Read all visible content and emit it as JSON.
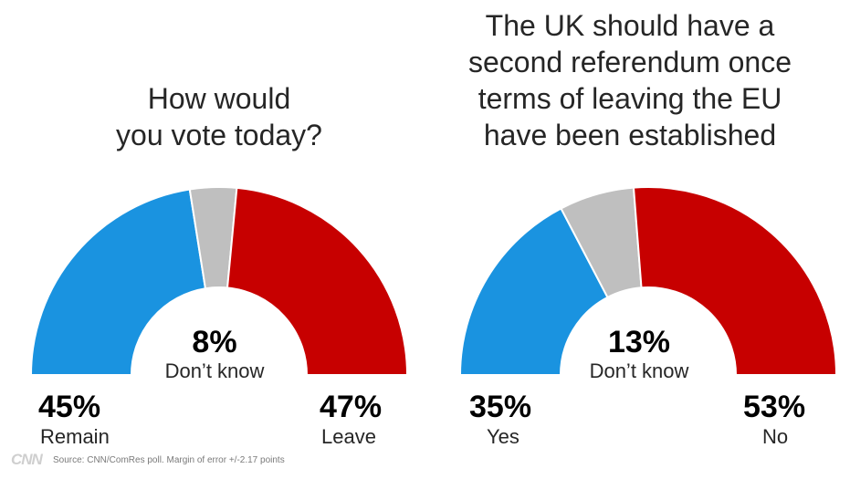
{
  "colors": {
    "remain": "#1a93e0",
    "dontknow": "#bfbfbf",
    "leave": "#c70000",
    "text": "#262626"
  },
  "chart_data": [
    {
      "type": "pie",
      "title": "How would\nyou vote today?",
      "segments": [
        {
          "label": "Remain",
          "value": 45,
          "pct_label": "45%",
          "color": "#1a93e0"
        },
        {
          "label": "Don’t know",
          "value": 8,
          "pct_label": "8%",
          "color": "#bfbfbf"
        },
        {
          "label": "Leave",
          "value": 47,
          "pct_label": "47%",
          "color": "#c70000"
        }
      ]
    },
    {
      "type": "pie",
      "title": "The UK should have a\nsecond referendum once\nterms of leaving the EU\nhave been established",
      "segments": [
        {
          "label": "Yes",
          "value": 35,
          "pct_label": "35%",
          "color": "#1a93e0"
        },
        {
          "label": "Don’t know",
          "value": 13,
          "pct_label": "13%",
          "color": "#bfbfbf"
        },
        {
          "label": "No",
          "value": 53,
          "pct_label": "53%",
          "color": "#c70000"
        }
      ]
    }
  ],
  "footer": {
    "logo": "CNN",
    "source": "Source: CNN/ComRes poll. Margin of error +/-2.17 points"
  }
}
